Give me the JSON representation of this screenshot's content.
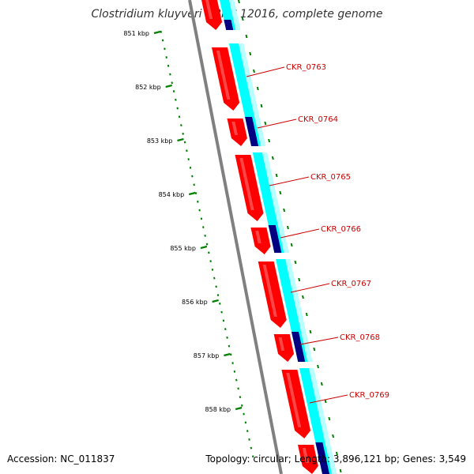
{
  "title": "Clostridium kluyveri NBRC 12016, complete genome",
  "footer": {
    "accession": "Accession: NC_011837",
    "summary": "Topology: circular; Length: 3,896,121 bp; Genes: 3,549"
  },
  "scale": {
    "ticks": [
      "851 kbp",
      "852 kbp",
      "853 kbp",
      "854 kbp",
      "855 kbp",
      "856 kbp",
      "857 kbp",
      "858 kbp"
    ]
  },
  "genes": {
    "labels": [
      "CKR_0763",
      "CKR_0764",
      "CKR_0765",
      "CKR_0766",
      "CKR_0767",
      "CKR_0768",
      "CKR_0769"
    ]
  },
  "colors": {
    "cds": "#ff0000",
    "cds_highlight": "#ff8080",
    "feature": "#00ffff",
    "feature_dark": "#000080",
    "backbone": "#808080",
    "ruler": "#008000",
    "label": "#cc0000"
  }
}
